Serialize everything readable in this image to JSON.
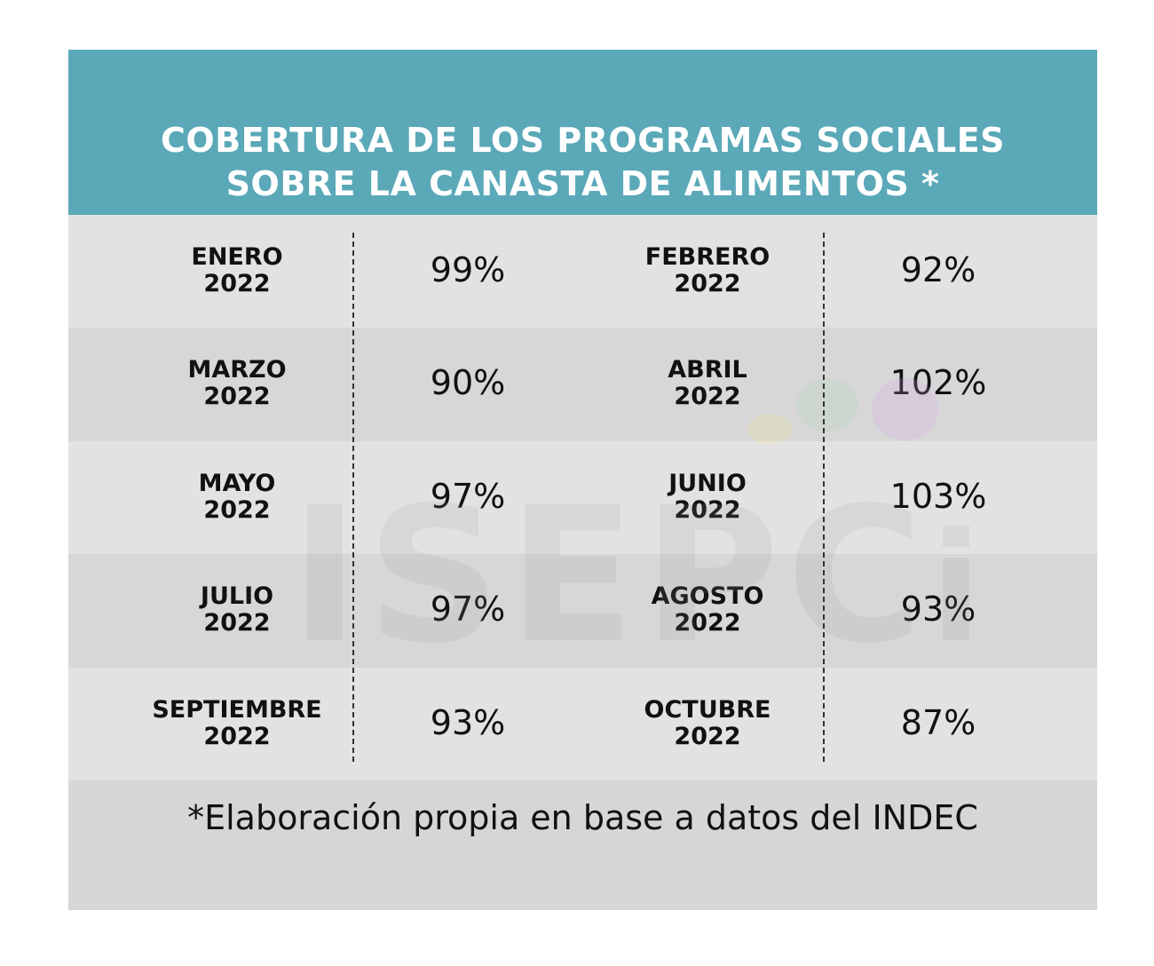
{
  "chart_data": {
    "type": "table",
    "title": "COBERTURA DE LOS PROGRAMAS SOCIALES SOBRE LA CANASTA DE ALIMENTOS *",
    "title_lines": [
      "COBERTURA DE LOS PROGRAMAS SOCIALES",
      "SOBRE LA CANASTA DE ALIMENTOS *"
    ],
    "rows": [
      [
        {
          "month": "ENERO",
          "year": "2022",
          "value": "99%"
        },
        {
          "month": "FEBRERO",
          "year": "2022",
          "value": "92%"
        }
      ],
      [
        {
          "month": "MARZO",
          "year": "2022",
          "value": "90%"
        },
        {
          "month": "ABRIL",
          "year": "2022",
          "value": "102%"
        }
      ],
      [
        {
          "month": "MAYO",
          "year": "2022",
          "value": "97%"
        },
        {
          "month": "JUNIO",
          "year": "2022",
          "value": "103%"
        }
      ],
      [
        {
          "month": "JULIO",
          "year": "2022",
          "value": "97%"
        },
        {
          "month": "AGOSTO",
          "year": "2022",
          "value": "93%"
        }
      ],
      [
        {
          "month": "SEPTIEMBRE",
          "year": "2022",
          "value": "93%"
        },
        {
          "month": "OCTUBRE",
          "year": "2022",
          "value": "87%"
        }
      ]
    ],
    "footnote": "*Elaboración propia en base a datos del INDEC",
    "watermark": "ISEPCi"
  },
  "colors": {
    "header": "#5aa8b8",
    "row_light": "#e3e2e3",
    "row_dark": "#d8d7d8",
    "footer": "#d6d6d6"
  }
}
